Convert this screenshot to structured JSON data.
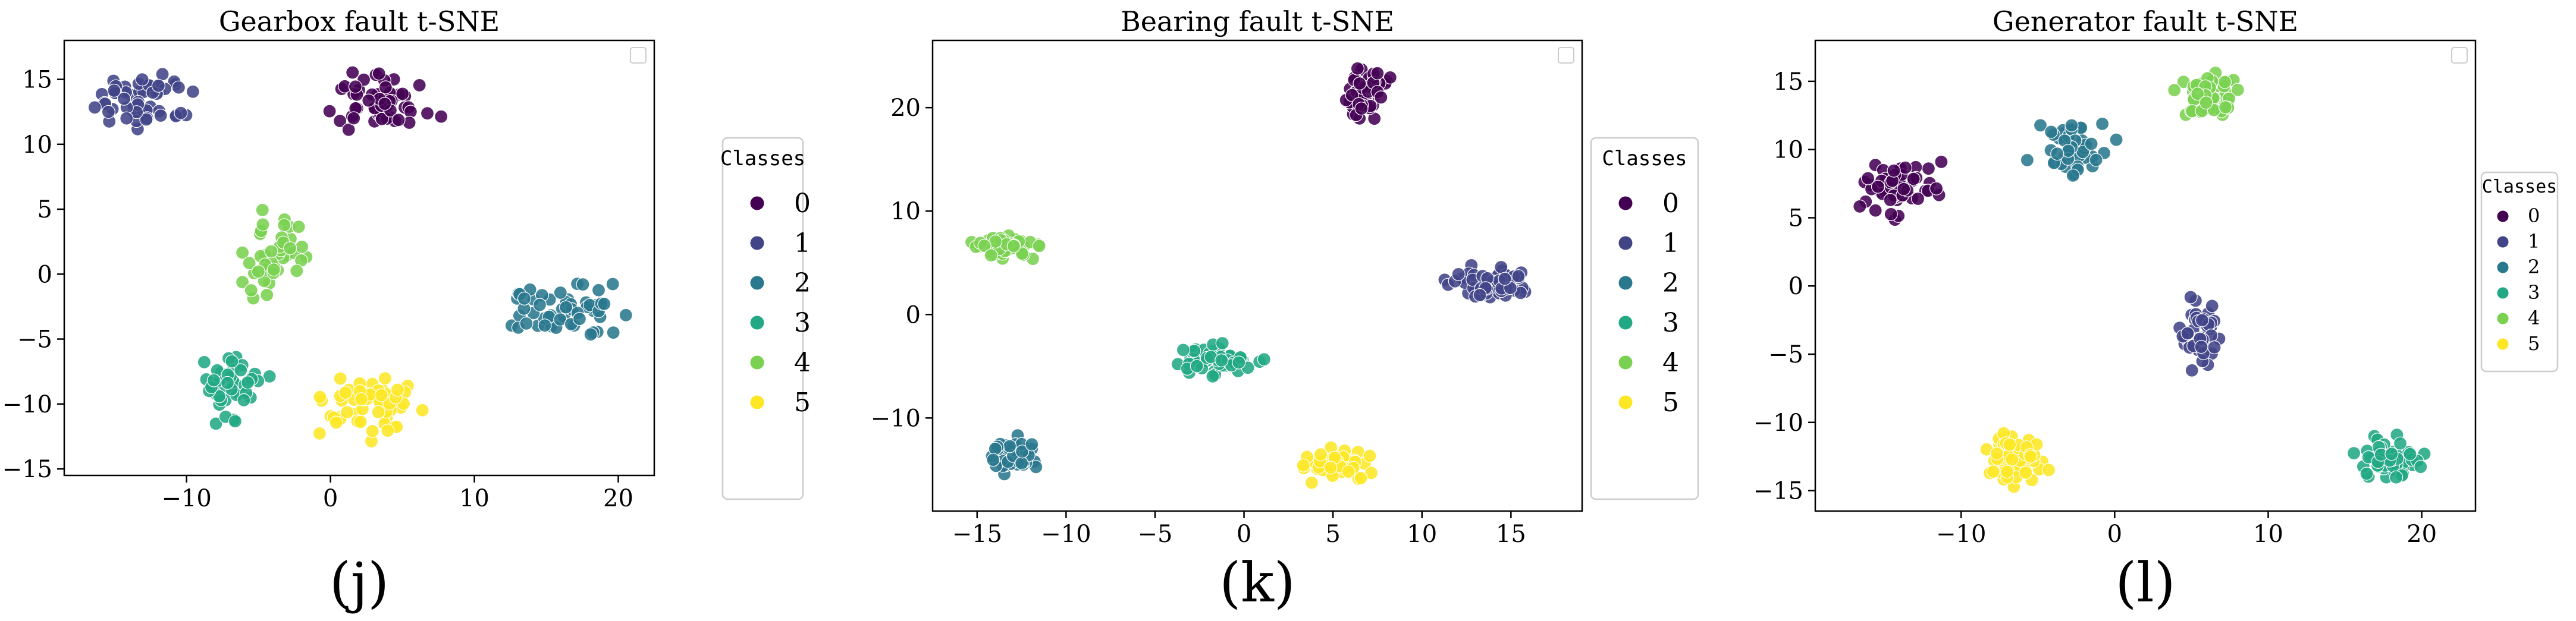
{
  "chart_data": [
    {
      "type": "scatter",
      "title": "Gearbox fault t-SNE",
      "panel_label": "(j)",
      "xlim": [
        -18.5,
        22.5
      ],
      "ylim": [
        -15.5,
        18
      ],
      "xticks": [
        -10,
        0,
        10,
        20
      ],
      "yticks": [
        -15,
        -10,
        -5,
        0,
        5,
        10,
        15
      ],
      "legend_title": "Classes",
      "legend_placement": "right",
      "legend_labels": [
        "0",
        "1",
        "2",
        "3",
        "4",
        "5"
      ],
      "series": [
        {
          "label": "0",
          "color": "#440154",
          "center": [
            3.5,
            13.0
          ],
          "spread": [
            2.4,
            1.8
          ],
          "n": 55
        },
        {
          "label": "1",
          "color": "#414487",
          "center": [
            -12.5,
            13.5
          ],
          "spread": [
            2.6,
            1.4
          ],
          "n": 55
        },
        {
          "label": "2",
          "color": "#2a788e",
          "center": [
            16.5,
            -3.0
          ],
          "spread": [
            2.5,
            1.5
          ],
          "n": 55
        },
        {
          "label": "3",
          "color": "#22a884",
          "center": [
            -6.5,
            -9.0
          ],
          "spread": [
            1.7,
            1.8
          ],
          "n": 45
        },
        {
          "label": "4",
          "color": "#7ad151",
          "center": [
            -4.0,
            1.5
          ],
          "spread": [
            1.5,
            2.2
          ],
          "n": 45
        },
        {
          "label": "5",
          "color": "#fde725",
          "center": [
            2.5,
            -10.5
          ],
          "spread": [
            2.4,
            1.8
          ],
          "n": 55
        }
      ]
    },
    {
      "type": "scatter",
      "title": "Bearing fault t-SNE",
      "panel_label": "(k)",
      "xlim": [
        -17.5,
        19
      ],
      "ylim": [
        -19,
        26.5
      ],
      "xticks": [
        -15,
        -10,
        -5,
        0,
        5,
        10,
        15
      ],
      "yticks": [
        -10,
        0,
        10,
        20
      ],
      "legend_title": "Classes",
      "legend_placement": "right",
      "legend_labels": [
        "0",
        "1",
        "2",
        "3",
        "4",
        "5"
      ],
      "series": [
        {
          "label": "0",
          "color": "#440154",
          "center": [
            6.8,
            21.0
          ],
          "spread": [
            0.9,
            1.8
          ],
          "n": 55
        },
        {
          "label": "1",
          "color": "#414487",
          "center": [
            14.0,
            2.8
          ],
          "spread": [
            1.7,
            1.1
          ],
          "n": 55
        },
        {
          "label": "2",
          "color": "#2a788e",
          "center": [
            -13.0,
            -13.5
          ],
          "spread": [
            1.1,
            1.1
          ],
          "n": 55
        },
        {
          "label": "3",
          "color": "#22a884",
          "center": [
            -1.5,
            -4.5
          ],
          "spread": [
            1.7,
            1.1
          ],
          "n": 55
        },
        {
          "label": "4",
          "color": "#7ad151",
          "center": [
            -13.3,
            6.5
          ],
          "spread": [
            1.3,
            0.9
          ],
          "n": 55
        },
        {
          "label": "5",
          "color": "#fde725",
          "center": [
            5.0,
            -14.5
          ],
          "spread": [
            1.3,
            1.0
          ],
          "n": 55
        }
      ]
    },
    {
      "type": "scatter",
      "title": "Generator fault t-SNE",
      "panel_label": "(l)",
      "xlim": [
        -19.5,
        23.5
      ],
      "ylim": [
        -16.5,
        18
      ],
      "xticks": [
        -10,
        0,
        10,
        20
      ],
      "yticks": [
        -15,
        -10,
        -5,
        0,
        5,
        10,
        15
      ],
      "legend_title": "Classes",
      "legend_placement": "right",
      "legend_labels": [
        "0",
        "1",
        "2",
        "3",
        "4",
        "5"
      ],
      "series": [
        {
          "label": "0",
          "color": "#440154",
          "center": [
            -14.0,
            7.2
          ],
          "spread": [
            1.7,
            1.4
          ],
          "n": 55
        },
        {
          "label": "1",
          "color": "#414487",
          "center": [
            5.5,
            -3.5
          ],
          "spread": [
            1.0,
            1.6
          ],
          "n": 55
        },
        {
          "label": "2",
          "color": "#2a788e",
          "center": [
            -3.0,
            10.0
          ],
          "spread": [
            1.6,
            1.3
          ],
          "n": 50
        },
        {
          "label": "3",
          "color": "#22a884",
          "center": [
            18.0,
            -12.8
          ],
          "spread": [
            1.5,
            1.1
          ],
          "n": 55
        },
        {
          "label": "4",
          "color": "#7ad151",
          "center": [
            6.0,
            13.8
          ],
          "spread": [
            1.6,
            1.1
          ],
          "n": 55
        },
        {
          "label": "5",
          "color": "#fde725",
          "center": [
            -6.5,
            -12.5
          ],
          "spread": [
            1.3,
            1.3
          ],
          "n": 55
        }
      ]
    }
  ]
}
